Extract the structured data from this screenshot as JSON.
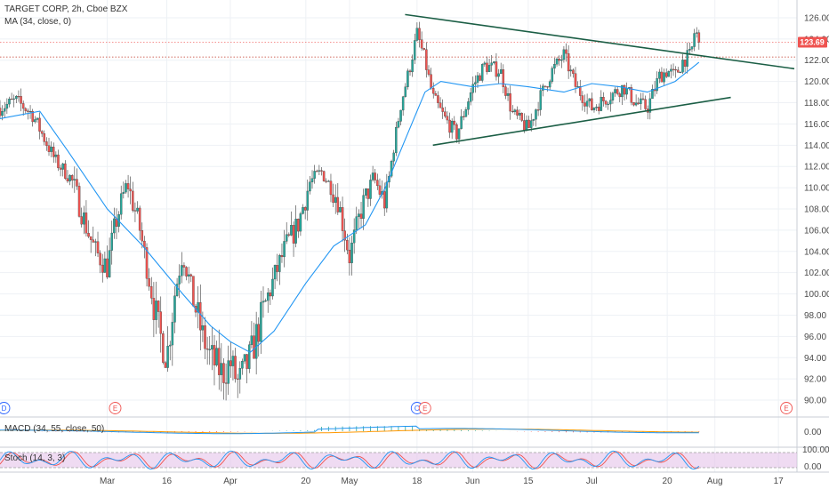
{
  "header": {
    "symbol_line": "TARGET CORP, 2h, Cboe BZX",
    "ma_line": "MA (34, close, 0)"
  },
  "price_tag": "123.69",
  "colors": {
    "up": "#26a69a",
    "down": "#ef5350",
    "ma": "#2196f3",
    "trend": "#1b5e45",
    "macd_signal": "#ff9800",
    "stoch_fill": "#e1bee7",
    "event_blue": "#2962ff",
    "event_red": "#ef5350",
    "tag": "#ef5350"
  },
  "events": [
    {
      "letter": "D",
      "color": "blue",
      "date": "2020-02-04"
    },
    {
      "letter": "E",
      "color": "red",
      "date": "2020-03-03"
    },
    {
      "letter": "C",
      "color": "blue",
      "date": "2020-05-18"
    },
    {
      "letter": "E",
      "color": "red",
      "date": "2020-05-20"
    },
    {
      "letter": "E",
      "color": "red",
      "date": "2020-08-19"
    }
  ],
  "macd": {
    "label": "MACD (34, 55, close, 50)",
    "ticks": [
      "0.00"
    ]
  },
  "stoch": {
    "label": "Stoch (14, 3, 3)",
    "ticks": [
      "100.00",
      "0.00"
    ]
  },
  "chart_data": {
    "type": "candlestick",
    "x_start": "2020-02-03",
    "x_end": "2020-08-21",
    "xticks": [
      {
        "date": "2020-03-01",
        "label": "Mar"
      },
      {
        "date": "2020-03-16",
        "label": "16"
      },
      {
        "date": "2020-04-01",
        "label": "Apr"
      },
      {
        "date": "2020-04-20",
        "label": "20"
      },
      {
        "date": "2020-05-01",
        "label": "May"
      },
      {
        "date": "2020-05-18",
        "label": "18"
      },
      {
        "date": "2020-06-01",
        "label": "Jun"
      },
      {
        "date": "2020-06-15",
        "label": "15"
      },
      {
        "date": "2020-07-01",
        "label": "Jul"
      },
      {
        "date": "2020-07-20",
        "label": "20"
      },
      {
        "date": "2020-08-01",
        "label": "Aug"
      },
      {
        "date": "2020-08-17",
        "label": "17"
      }
    ],
    "ylim": [
      89,
      127
    ],
    "yticks": [
      90,
      92,
      94,
      96,
      98,
      100,
      102,
      104,
      106,
      108,
      110,
      112,
      114,
      116,
      118,
      120,
      122,
      124,
      126
    ],
    "last_price": 123.69,
    "ref_lines": [
      123.69,
      122.3
    ],
    "price_path": [
      [
        "2020-02-03",
        117.5
      ],
      [
        "2020-02-07",
        118.2
      ],
      [
        "2020-02-11",
        117.0
      ],
      [
        "2020-02-13",
        115.5
      ],
      [
        "2020-02-17",
        112.5
      ],
      [
        "2020-02-21",
        110.8
      ],
      [
        "2020-02-25",
        106.0
      ],
      [
        "2020-02-27",
        104.0
      ],
      [
        "2020-03-01",
        102.5
      ],
      [
        "2020-03-03",
        106.5
      ],
      [
        "2020-03-06",
        110.5
      ],
      [
        "2020-03-09",
        106.5
      ],
      [
        "2020-03-12",
        100.5
      ],
      [
        "2020-03-14",
        96.5
      ],
      [
        "2020-03-16",
        94.0
      ],
      [
        "2020-03-18",
        100.0
      ],
      [
        "2020-03-20",
        104.0
      ],
      [
        "2020-03-23",
        99.0
      ],
      [
        "2020-03-25",
        96.0
      ],
      [
        "2020-03-27",
        94.0
      ],
      [
        "2020-03-30",
        92.5
      ],
      [
        "2020-04-01",
        93.5
      ],
      [
        "2020-04-03",
        91.5
      ],
      [
        "2020-04-06",
        94.0
      ],
      [
        "2020-04-09",
        98.0
      ],
      [
        "2020-04-12",
        101.5
      ],
      [
        "2020-04-15",
        104.5
      ],
      [
        "2020-04-18",
        106.5
      ],
      [
        "2020-04-21",
        110.5
      ],
      [
        "2020-04-24",
        111.5
      ],
      [
        "2020-04-28",
        109.0
      ],
      [
        "2020-05-01",
        103.5
      ],
      [
        "2020-05-04",
        108.0
      ],
      [
        "2020-05-07",
        111.0
      ],
      [
        "2020-05-10",
        108.5
      ],
      [
        "2020-05-12",
        113.5
      ],
      [
        "2020-05-14",
        118.0
      ],
      [
        "2020-05-16",
        121.0
      ],
      [
        "2020-05-18",
        124.5
      ],
      [
        "2020-05-20",
        122.0
      ],
      [
        "2020-05-22",
        118.5
      ],
      [
        "2020-05-25",
        116.5
      ],
      [
        "2020-05-28",
        115.0
      ],
      [
        "2020-06-01",
        119.5
      ],
      [
        "2020-06-04",
        121.5
      ],
      [
        "2020-06-08",
        121.0
      ],
      [
        "2020-06-11",
        117.0
      ],
      [
        "2020-06-15",
        115.5
      ],
      [
        "2020-06-18",
        118.5
      ],
      [
        "2020-06-21",
        121.0
      ],
      [
        "2020-06-24",
        122.5
      ],
      [
        "2020-06-27",
        119.5
      ],
      [
        "2020-07-01",
        117.5
      ],
      [
        "2020-07-05",
        118.5
      ],
      [
        "2020-07-09",
        119.5
      ],
      [
        "2020-07-12",
        118.0
      ],
      [
        "2020-07-15",
        117.5
      ],
      [
        "2020-07-18",
        120.5
      ],
      [
        "2020-07-20",
        121.0
      ],
      [
        "2020-07-22",
        120.5
      ],
      [
        "2020-07-24",
        122.0
      ],
      [
        "2020-07-26",
        122.5
      ],
      [
        "2020-07-27",
        125.0
      ],
      [
        "2020-07-28",
        123.69
      ]
    ],
    "ma_path": [
      [
        "2020-02-03",
        116.5
      ],
      [
        "2020-02-13",
        117.2
      ],
      [
        "2020-02-20",
        113.5
      ],
      [
        "2020-03-01",
        108.0
      ],
      [
        "2020-03-10",
        104.5
      ],
      [
        "2020-03-20",
        100.0
      ],
      [
        "2020-03-27",
        97.0
      ],
      [
        "2020-04-01",
        95.5
      ],
      [
        "2020-04-06",
        94.5
      ],
      [
        "2020-04-12",
        96.5
      ],
      [
        "2020-04-20",
        101.0
      ],
      [
        "2020-04-27",
        104.5
      ],
      [
        "2020-05-05",
        106.5
      ],
      [
        "2020-05-10",
        110.0
      ],
      [
        "2020-05-15",
        114.5
      ],
      [
        "2020-05-20",
        119.0
      ],
      [
        "2020-05-24",
        120.0
      ],
      [
        "2020-06-01",
        119.5
      ],
      [
        "2020-06-08",
        119.8
      ],
      [
        "2020-06-15",
        119.5
      ],
      [
        "2020-06-24",
        119.0
      ],
      [
        "2020-07-01",
        119.8
      ],
      [
        "2020-07-08",
        119.5
      ],
      [
        "2020-07-15",
        119.0
      ],
      [
        "2020-07-22",
        120.0
      ],
      [
        "2020-07-28",
        121.8
      ]
    ],
    "trendlines": [
      {
        "name": "resistance",
        "from": [
          "2020-05-15",
          126.3
        ],
        "to": [
          "2020-08-21",
          121.2
        ]
      },
      {
        "name": "support",
        "from": [
          "2020-05-22",
          114.0
        ],
        "to": [
          "2020-08-05",
          118.5
        ]
      }
    ]
  }
}
